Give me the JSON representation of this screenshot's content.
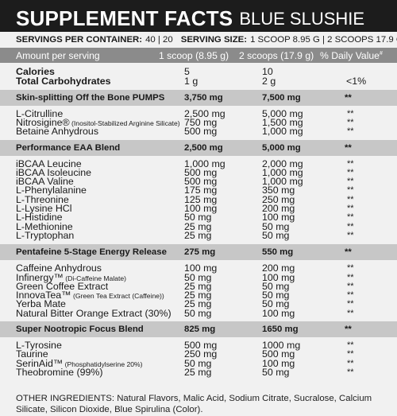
{
  "header": {
    "title": "SUPPLEMENT FACTS",
    "flavor": "BLUE SLUSHIE"
  },
  "servings": {
    "per_container_label": "SERVINGS PER CONTAINER:",
    "per_container_value": "40 | 20",
    "size_label": "SERVING SIZE:",
    "size_value": "1 SCOOP 8.95 G | 2 SCOOPS 17.9 G"
  },
  "amount_header": {
    "label": "Amount per serving",
    "one_scoop": "1 scoop (8.95 g)",
    "two_scoops": "2 scoops (17.9 g)",
    "dv": "% Daily Value",
    "dv_mark": "#"
  },
  "calories": {
    "cal_label": "Calories",
    "cal_1": "5",
    "cal_2": "10",
    "carb_label": "Total Carbohydrates",
    "carb_1": "1 g",
    "carb_2": "2 g",
    "carb_dv": "<1%"
  },
  "blends": [
    {
      "name": "Skin-splitting Off the Bone PUMPS",
      "v1": "3,750 mg",
      "v2": "7,500 mg",
      "dv": "**",
      "items": [
        {
          "name": "L-Citrulline",
          "note": "",
          "v1": "2,500 mg",
          "v2": "5,000 mg",
          "dv": "**"
        },
        {
          "name": "Nitrosigine®",
          "note": " (Inositol-Stabilized Arginine Silicate)",
          "v1": "750 mg",
          "v2": "1,500 mg",
          "dv": "**"
        },
        {
          "name": "Betaine Anhydrous",
          "note": "",
          "v1": "500 mg",
          "v2": "1,000 mg",
          "dv": "**"
        }
      ]
    },
    {
      "name": "Performance EAA Blend",
      "v1": "2,500 mg",
      "v2": "5,000 mg",
      "dv": "**",
      "items": [
        {
          "name": "iBCAA Leucine",
          "note": "",
          "v1": "1,000 mg",
          "v2": "2,000 mg",
          "dv": "**"
        },
        {
          "name": "iBCAA Isoleucine",
          "note": "",
          "v1": "500 mg",
          "v2": "1,000 mg",
          "dv": "**"
        },
        {
          "name": "iBCAA Valine",
          "note": "",
          "v1": "500 mg",
          "v2": "1,000 mg",
          "dv": "**"
        },
        {
          "name": "L-Phenylalanine",
          "note": "",
          "v1": "175 mg",
          "v2": "350 mg",
          "dv": "**"
        },
        {
          "name": "L-Threonine",
          "note": "",
          "v1": "125 mg",
          "v2": "250 mg",
          "dv": "**"
        },
        {
          "name": "L-Lysine HCl",
          "note": "",
          "v1": "100 mg",
          "v2": "200 mg",
          "dv": "**"
        },
        {
          "name": "L-Histidine",
          "note": "",
          "v1": "50 mg",
          "v2": "100 mg",
          "dv": "**"
        },
        {
          "name": "L-Methionine",
          "note": "",
          "v1": "25 mg",
          "v2": "50 mg",
          "dv": "**"
        },
        {
          "name": "L-Tryptophan",
          "note": "",
          "v1": "25 mg",
          "v2": "50 mg",
          "dv": "**"
        }
      ]
    },
    {
      "name": "Pentafeine 5-Stage Energy Release",
      "v1": "275 mg",
      "v2": "550 mg",
      "dv": "**",
      "items": [
        {
          "name": "Caffeine Anhydrous",
          "note": "",
          "v1": "100 mg",
          "v2": "200 mg",
          "dv": "**"
        },
        {
          "name": "Infinergy™",
          "note": " (Di-Caffeine Malate)",
          "v1": "50 mg",
          "v2": "100 mg",
          "dv": "**"
        },
        {
          "name": "Green Coffee Extract",
          "note": "",
          "v1": "25 mg",
          "v2": "50 mg",
          "dv": "**"
        },
        {
          "name": "InnovaTea™",
          "note": " (Green Tea Extract (Caffeine))",
          "v1": "25 mg",
          "v2": "50 mg",
          "dv": "**"
        },
        {
          "name": "Yerba Mate",
          "note": "",
          "v1": "25 mg",
          "v2": "50 mg",
          "dv": "**"
        },
        {
          "name": "Natural Bitter Orange Extract (30%)",
          "note": "",
          "v1": "50 mg",
          "v2": "100 mg",
          "dv": "**"
        }
      ]
    },
    {
      "name": "Super Nootropic Focus Blend",
      "v1": "825 mg",
      "v2": "1650 mg",
      "dv": "**",
      "items": [
        {
          "name": "L-Tyrosine",
          "note": "",
          "v1": "500 mg",
          "v2": "1000 mg",
          "dv": "**"
        },
        {
          "name": "Taurine",
          "note": "",
          "v1": "250 mg",
          "v2": "500 mg",
          "dv": "**"
        },
        {
          "name": "SerinAid™",
          "note": " (Phosphatidylserine 20%)",
          "v1": "50 mg",
          "v2": "100 mg",
          "dv": "**"
        },
        {
          "name": "Theobromine (99%)",
          "note": "",
          "v1": "25 mg",
          "v2": "50 mg",
          "dv": "**"
        }
      ]
    }
  ],
  "other_ingredients": "OTHER INGREDIENTS: Natural Flavors, Malic Acid, Sodium Citrate, Sucralose, Calcium Silicate, Silicon Dioxide, Blue Spirulina (Color)."
}
